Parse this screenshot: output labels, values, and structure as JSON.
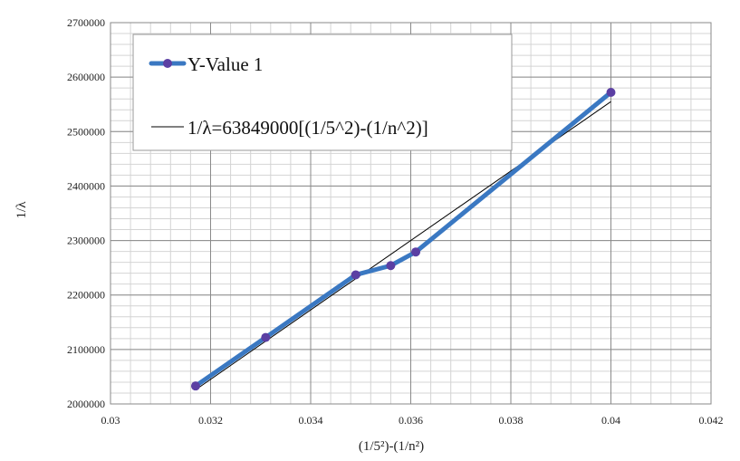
{
  "chart_data": {
    "type": "line",
    "xlabel": "(1/5²)-(1/n²)",
    "ylabel": "1/λ",
    "xlim": [
      0.03,
      0.042
    ],
    "ylim": [
      2000000,
      2700000
    ],
    "x_ticks": [
      "0.03",
      "0.032",
      "0.034",
      "0.036",
      "0.038",
      "0.04",
      "0.042"
    ],
    "y_ticks": [
      "2000000",
      "2100000",
      "2200000",
      "2300000",
      "2400000",
      "2500000",
      "2600000",
      "2700000"
    ],
    "grid": true,
    "legend_position": "top-left",
    "series": [
      {
        "name": "Y-Value 1",
        "color": "#3a78c2",
        "marker_color": "#5b3fa3",
        "x": [
          0.0317,
          0.0331,
          0.0349,
          0.0356,
          0.0361,
          0.04
        ],
        "y": [
          2033000,
          2122000,
          2237000,
          2254000,
          2279000,
          2572000
        ]
      },
      {
        "name": "1/λ=63849000[(1/5^2)-(1/n^2)]",
        "color": "#000000",
        "x": [
          0.0317,
          0.04
        ],
        "y": [
          2026000,
          2555000
        ]
      }
    ]
  }
}
